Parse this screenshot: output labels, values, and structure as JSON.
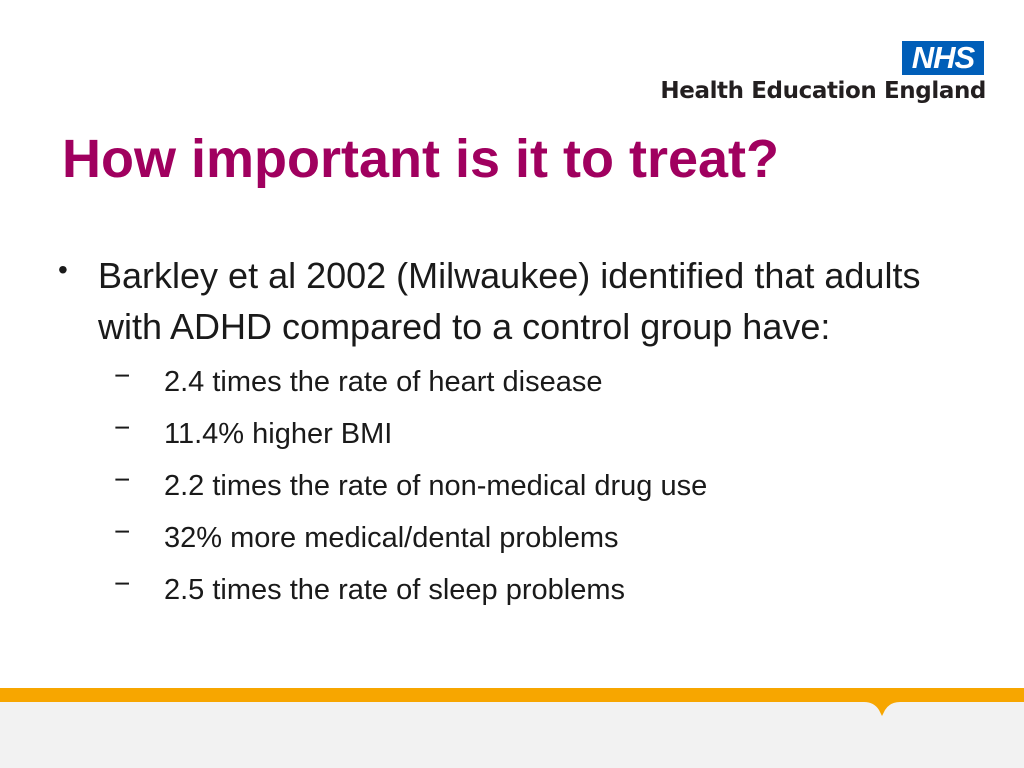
{
  "branding": {
    "nhs_logo_text": "NHS",
    "org_name": "Health Education England"
  },
  "slide": {
    "title": "How important is it to treat?",
    "bullet": "Barkley et al 2002 (Milwaukee) identified that adults with ADHD compared to a control group have:",
    "sub_bullets": [
      "2.4 times the rate of heart disease",
      "11.4% higher BMI",
      "2.2 times the rate of non-medical drug use",
      "32% more medical/dental problems",
      "2.5 times the rate of sleep problems"
    ]
  },
  "colors": {
    "title": "#a0005f",
    "nhs_blue": "#005EB8",
    "footer_orange": "#f7a600",
    "footer_grey": "#f2f2f2"
  }
}
